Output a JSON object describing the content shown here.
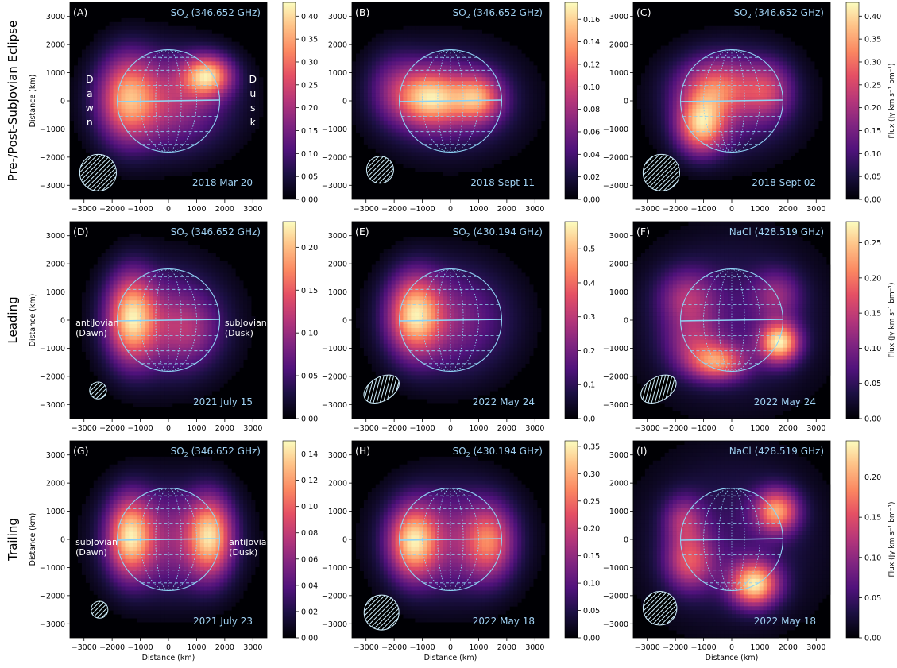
{
  "figure": {
    "row_labels": [
      "Pre-/Post-SubJovian Eclipse",
      "Leading",
      "Trailing"
    ],
    "axis_label": "Distance (km)",
    "colorbar_label": "Flux (Jy km s⁻¹ bm⁻¹)",
    "colors": {
      "planet_outline": "#8fd3f4",
      "label_text": "#9fd0f2",
      "background": "#000000"
    }
  },
  "chart_data": [
    {
      "type": "heatmap",
      "panel": "(A)",
      "line": "SO₂ (346.652 GHz)",
      "date": "2018 Mar 20",
      "x_ticks": [
        -3000,
        -2000,
        -1000,
        0,
        1000,
        2000,
        3000
      ],
      "y_ticks": [
        3000,
        2000,
        1000,
        0,
        -1000,
        -2000,
        -3000
      ],
      "xlim": [
        -3500,
        3500
      ],
      "ylim": [
        -3500,
        3500
      ],
      "colorbar_ticks": [
        "0.00",
        "0.05",
        "0.10",
        "0.15",
        "0.20",
        "0.25",
        "0.30",
        "0.35",
        "0.40"
      ],
      "colorbar_max": 0.43,
      "annotations": [
        {
          "text": "Dawn",
          "vertical": true,
          "x": -2800,
          "y": 0
        },
        {
          "text": "Dusk",
          "vertical": true,
          "x": 3000,
          "y": 0
        }
      ],
      "blobs": [
        {
          "x": -1500,
          "y": 100,
          "sx": 700,
          "sy": 1100,
          "a": 0.55
        },
        {
          "x": 1400,
          "y": 900,
          "sx": 600,
          "sy": 500,
          "a": 0.7
        },
        {
          "x": 0,
          "y": 0,
          "sx": 1500,
          "sy": 1200,
          "a": 0.45
        }
      ],
      "beam": {
        "x": -2500,
        "y": -2550,
        "rx": 650,
        "ry": 650,
        "angle": 0
      }
    },
    {
      "type": "heatmap",
      "panel": "(B)",
      "line": "SO₂ (346.652 GHz)",
      "date": "2018 Sept 11",
      "x_ticks": [
        -3000,
        -2000,
        -1000,
        0,
        1000,
        2000,
        3000
      ],
      "y_ticks": [
        3000,
        2000,
        1000,
        0,
        -1000,
        -2000,
        -3000
      ],
      "xlim": [
        -3500,
        3500
      ],
      "ylim": [
        -3500,
        3500
      ],
      "colorbar_ticks": [
        "0.00",
        "0.02",
        "0.04",
        "0.06",
        "0.08",
        "0.10",
        "0.12",
        "0.14",
        "0.16"
      ],
      "colorbar_max": 0.175,
      "annotations": [],
      "blobs": [
        {
          "x": -700,
          "y": 100,
          "sx": 800,
          "sy": 700,
          "a": 0.7
        },
        {
          "x": 1000,
          "y": 100,
          "sx": 600,
          "sy": 600,
          "a": 0.6
        },
        {
          "x": -2000,
          "y": 500,
          "sx": 700,
          "sy": 900,
          "a": 0.25
        },
        {
          "x": 0,
          "y": 0,
          "sx": 1700,
          "sy": 1300,
          "a": 0.3
        }
      ],
      "beam": {
        "x": -2500,
        "y": -2450,
        "rx": 480,
        "ry": 480,
        "angle": 0
      }
    },
    {
      "type": "heatmap",
      "panel": "(C)",
      "line": "SO₂ (346.652 GHz)",
      "date": "2018 Sept 02",
      "x_ticks": [
        -3000,
        -2000,
        -1000,
        0,
        1000,
        2000,
        3000
      ],
      "y_ticks": [
        3000,
        2000,
        1000,
        0,
        -1000,
        -2000,
        -3000
      ],
      "xlim": [
        -3500,
        3500
      ],
      "ylim": [
        -3500,
        3500
      ],
      "colorbar_ticks": [
        "0.00",
        "0.05",
        "0.10",
        "0.15",
        "0.20",
        "0.25",
        "0.30",
        "0.35",
        "0.40"
      ],
      "colorbar_max": 0.43,
      "annotations": [],
      "blobs": [
        {
          "x": -1100,
          "y": -900,
          "sx": 600,
          "sy": 700,
          "a": 0.8
        },
        {
          "x": -600,
          "y": 500,
          "sx": 900,
          "sy": 700,
          "a": 0.5
        },
        {
          "x": 1300,
          "y": 400,
          "sx": 600,
          "sy": 700,
          "a": 0.4
        },
        {
          "x": 0,
          "y": 0,
          "sx": 1600,
          "sy": 1300,
          "a": 0.35
        }
      ],
      "beam": {
        "x": -2500,
        "y": -2550,
        "rx": 650,
        "ry": 650,
        "angle": 0
      }
    },
    {
      "type": "heatmap",
      "panel": "(D)",
      "line": "SO₂ (346.652 GHz)",
      "date": "2021 July 15",
      "x_ticks": [
        -3000,
        -2000,
        -1000,
        0,
        1000,
        2000,
        3000
      ],
      "y_ticks": [
        3000,
        2000,
        1000,
        0,
        -1000,
        -2000,
        -3000
      ],
      "xlim": [
        -3500,
        3500
      ],
      "ylim": [
        -3500,
        3500
      ],
      "colorbar_ticks": [
        "0.00",
        "0.05",
        "0.10",
        "0.15",
        "0.20"
      ],
      "colorbar_max": 0.23,
      "annotations": [
        {
          "text": "antiJovian\n(Dawn)",
          "vertical": false,
          "x": -3300,
          "y": -200
        },
        {
          "text": "subJovian\n(Dusk)",
          "vertical": false,
          "x": 2000,
          "y": -200
        }
      ],
      "blobs": [
        {
          "x": -1350,
          "y": 100,
          "sx": 600,
          "sy": 1100,
          "a": 0.85
        },
        {
          "x": 0,
          "y": -100,
          "sx": 1400,
          "sy": 1350,
          "a": 0.45
        },
        {
          "x": 800,
          "y": -400,
          "sx": 700,
          "sy": 800,
          "a": 0.2
        }
      ],
      "beam": {
        "x": -2500,
        "y": -2500,
        "rx": 300,
        "ry": 300,
        "angle": 0
      }
    },
    {
      "type": "heatmap",
      "panel": "(E)",
      "line": "SO₂ (430.194 GHz)",
      "date": "2022 May 24",
      "x_ticks": [
        -3000,
        -2000,
        -1000,
        0,
        1000,
        2000,
        3000
      ],
      "y_ticks": [
        3000,
        2000,
        1000,
        0,
        -1000,
        -2000,
        -3000
      ],
      "xlim": [
        -3500,
        3500
      ],
      "ylim": [
        -3500,
        3500
      ],
      "colorbar_ticks": [
        "0.0",
        "0.1",
        "0.2",
        "0.3",
        "0.4",
        "0.5"
      ],
      "colorbar_max": 0.58,
      "annotations": [],
      "blobs": [
        {
          "x": -1300,
          "y": 200,
          "sx": 650,
          "sy": 1000,
          "a": 0.85
        },
        {
          "x": 0,
          "y": 0,
          "sx": 1500,
          "sy": 1350,
          "a": 0.45
        }
      ],
      "beam": {
        "x": -2450,
        "y": -2450,
        "rx": 680,
        "ry": 420,
        "angle": -30
      }
    },
    {
      "type": "heatmap",
      "panel": "(F)",
      "line": "NaCl (428.519 GHz)",
      "date": "2022 May 24",
      "x_ticks": [
        -3000,
        -2000,
        -1000,
        0,
        1000,
        2000,
        3000
      ],
      "y_ticks": [
        3000,
        2000,
        1000,
        0,
        -1000,
        -2000,
        -3000
      ],
      "xlim": [
        -3500,
        3500
      ],
      "ylim": [
        -3500,
        3500
      ],
      "colorbar_ticks": [
        "0.00",
        "0.05",
        "0.10",
        "0.15",
        "0.20",
        "0.25"
      ],
      "colorbar_max": 0.28,
      "annotations": [],
      "blobs": [
        {
          "x": 1700,
          "y": -800,
          "sx": 500,
          "sy": 500,
          "a": 0.85
        },
        {
          "x": -500,
          "y": -1500,
          "sx": 700,
          "sy": 450,
          "a": 0.6
        },
        {
          "x": -1600,
          "y": 800,
          "sx": 700,
          "sy": 700,
          "a": 0.35
        },
        {
          "x": 1600,
          "y": 900,
          "sx": 600,
          "sy": 600,
          "a": 0.3
        },
        {
          "x": -1400,
          "y": -800,
          "sx": 700,
          "sy": 700,
          "a": 0.3
        },
        {
          "x": 0,
          "y": 0,
          "sx": 2200,
          "sy": 2000,
          "a": 0.22
        }
      ],
      "beam": {
        "x": -2600,
        "y": -2450,
        "rx": 680,
        "ry": 420,
        "angle": -30
      }
    },
    {
      "type": "heatmap",
      "panel": "(G)",
      "line": "SO₂ (346.652 GHz)",
      "date": "2021 July 23",
      "x_ticks": [
        -3000,
        -2000,
        -1000,
        0,
        1000,
        2000,
        3000
      ],
      "y_ticks": [
        3000,
        2000,
        1000,
        0,
        -1000,
        -2000,
        -3000
      ],
      "xlim": [
        -3500,
        3500
      ],
      "ylim": [
        -3500,
        3500
      ],
      "colorbar_ticks": [
        "0.00",
        "0.02",
        "0.04",
        "0.06",
        "0.08",
        "0.10",
        "0.12",
        "0.14"
      ],
      "colorbar_max": 0.15,
      "annotations": [
        {
          "text": "subJovian\n(Dawn)",
          "vertical": false,
          "x": -3300,
          "y": -200
        },
        {
          "text": "antiJovian\n(Dusk)",
          "vertical": false,
          "x": 2150,
          "y": -200
        }
      ],
      "blobs": [
        {
          "x": -1400,
          "y": 100,
          "sx": 550,
          "sy": 1000,
          "a": 0.8
        },
        {
          "x": 1500,
          "y": 100,
          "sx": 550,
          "sy": 1000,
          "a": 0.8
        },
        {
          "x": 0,
          "y": 0,
          "sx": 1500,
          "sy": 1350,
          "a": 0.45
        }
      ],
      "beam": {
        "x": -2450,
        "y": -2500,
        "rx": 300,
        "ry": 300,
        "angle": 0
      }
    },
    {
      "type": "heatmap",
      "panel": "(H)",
      "line": "SO₂ (430.194 GHz)",
      "date": "2022 May 18",
      "x_ticks": [
        -3000,
        -2000,
        -1000,
        0,
        1000,
        2000,
        3000
      ],
      "y_ticks": [
        3000,
        2000,
        1000,
        0,
        -1000,
        -2000,
        -3000
      ],
      "xlim": [
        -3500,
        3500
      ],
      "ylim": [
        -3500,
        3500
      ],
      "colorbar_ticks": [
        "0.00",
        "0.05",
        "0.10",
        "0.15",
        "0.20",
        "0.25",
        "0.30",
        "0.35"
      ],
      "colorbar_max": 0.36,
      "annotations": [],
      "blobs": [
        {
          "x": -1350,
          "y": -100,
          "sx": 600,
          "sy": 900,
          "a": 0.85
        },
        {
          "x": 1400,
          "y": -100,
          "sx": 600,
          "sy": 900,
          "a": 0.6
        },
        {
          "x": 0,
          "y": 0,
          "sx": 1550,
          "sy": 1400,
          "a": 0.45
        }
      ],
      "beam": {
        "x": -2450,
        "y": -2600,
        "rx": 620,
        "ry": 620,
        "angle": 0
      }
    },
    {
      "type": "heatmap",
      "panel": "(I)",
      "line": "NaCl (428.519 GHz)",
      "date": "2022 May 18",
      "x_ticks": [
        -3000,
        -2000,
        -1000,
        0,
        1000,
        2000,
        3000
      ],
      "y_ticks": [
        3000,
        2000,
        1000,
        0,
        -1000,
        -2000,
        -3000
      ],
      "xlim": [
        -3500,
        3500
      ],
      "ylim": [
        -3500,
        3500
      ],
      "colorbar_ticks": [
        "0.00",
        "0.05",
        "0.10",
        "0.15",
        "0.20"
      ],
      "colorbar_max": 0.245,
      "annotations": [],
      "blobs": [
        {
          "x": 800,
          "y": -1600,
          "sx": 600,
          "sy": 550,
          "a": 0.85
        },
        {
          "x": 1600,
          "y": 1000,
          "sx": 550,
          "sy": 550,
          "a": 0.7
        },
        {
          "x": -1500,
          "y": -800,
          "sx": 600,
          "sy": 700,
          "a": 0.5
        },
        {
          "x": -1700,
          "y": 700,
          "sx": 500,
          "sy": 600,
          "a": 0.35
        },
        {
          "x": 0,
          "y": 0,
          "sx": 2200,
          "sy": 2100,
          "a": 0.2
        }
      ],
      "beam": {
        "x": -2550,
        "y": -2450,
        "rx": 600,
        "ry": 600,
        "angle": 0
      }
    }
  ]
}
